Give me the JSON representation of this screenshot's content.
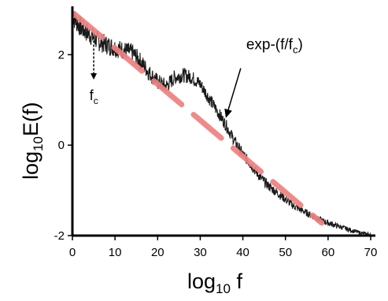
{
  "chart_data": {
    "type": "line",
    "xlabel": {
      "base": "log",
      "sub": "10",
      "rest": " f"
    },
    "ylabel": {
      "base": "log",
      "sub": "10",
      "rest": "E(f)"
    },
    "xlim": [
      0,
      70
    ],
    "ylim": [
      -2,
      3
    ],
    "x_ticks": [
      0,
      10,
      20,
      30,
      40,
      50,
      60,
      70
    ],
    "y_ticks": [
      -2,
      0,
      2
    ],
    "grid": false,
    "series": [
      {
        "style": "noisy-black",
        "color": "#1a1a1a",
        "points": [
          [
            0,
            2.85
          ],
          [
            2,
            2.6
          ],
          [
            4,
            2.45
          ],
          [
            6,
            2.3
          ],
          [
            8,
            2.22
          ],
          [
            10,
            2.15
          ],
          [
            12,
            2.1
          ],
          [
            14,
            2.05
          ],
          [
            16,
            1.85
          ],
          [
            18,
            1.6
          ],
          [
            20,
            1.4
          ],
          [
            22,
            1.3
          ],
          [
            24,
            1.5
          ],
          [
            26,
            1.55
          ],
          [
            28,
            1.5
          ],
          [
            30,
            1.35
          ],
          [
            32,
            1.05
          ],
          [
            34,
            0.75
          ],
          [
            36,
            0.45
          ],
          [
            38,
            0.1
          ],
          [
            40,
            -0.2
          ],
          [
            42,
            -0.45
          ],
          [
            44,
            -0.7
          ],
          [
            46,
            -0.9
          ],
          [
            48,
            -1.05
          ],
          [
            50,
            -1.2
          ],
          [
            52,
            -1.35
          ],
          [
            54,
            -1.45
          ],
          [
            56,
            -1.55
          ],
          [
            58,
            -1.65
          ],
          [
            60,
            -1.72
          ],
          [
            62,
            -1.78
          ],
          [
            64,
            -1.84
          ],
          [
            66,
            -1.9
          ],
          [
            68,
            -1.95
          ],
          [
            70,
            -1.97
          ]
        ]
      },
      {
        "style": "dashed-fit",
        "color": "#f08080",
        "points": [
          [
            0.5,
            2.9
          ],
          [
            58.5,
            -1.72
          ]
        ]
      }
    ],
    "annotations": [
      {
        "kind": "arrow-label",
        "label": {
          "base": "exp-(f/f",
          "sub": "c",
          "rest": ")"
        },
        "text_at": [
          43,
          2.12
        ],
        "arrow_from": [
          39.5,
          1.7
        ],
        "arrow_to": [
          36,
          0.6
        ]
      },
      {
        "kind": "marker-label",
        "label": {
          "base": "f",
          "sub": "c"
        },
        "marker_x": 5,
        "marker_from_y": 2.4,
        "marker_to_y": 1.45,
        "text_at": [
          5.5,
          1.0
        ]
      }
    ]
  }
}
